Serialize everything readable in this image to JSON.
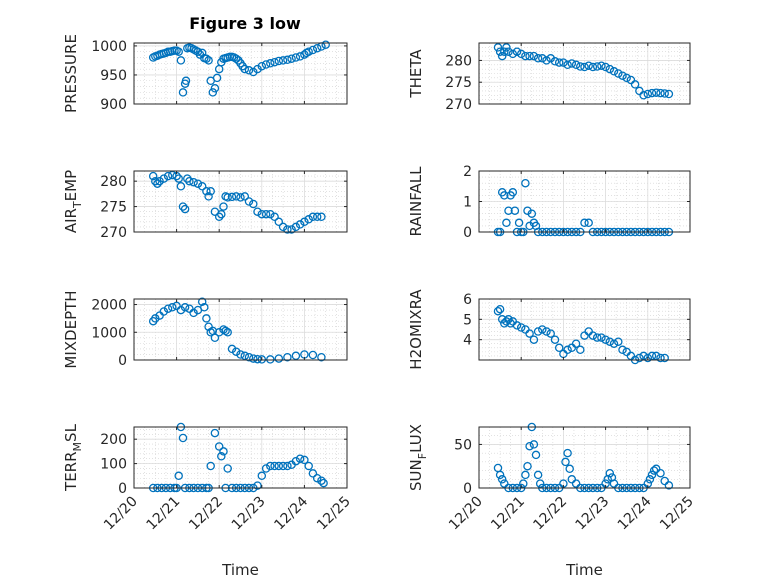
{
  "figure": {
    "title": "Figure 3 low",
    "xlabel": "Time",
    "marker_color": "#0072BD",
    "axes_color": "#262626",
    "grid_color": "#d0d0d0"
  },
  "x_ticks": [
    "12/20",
    "12/21",
    "12/22",
    "12/23",
    "12/24",
    "12/25"
  ],
  "chart_data": [
    {
      "type": "scatter",
      "name": "PRESSURE",
      "ylabel_main": "PRESSURE",
      "ylabel_sub": "",
      "ylabel_tail": "",
      "ylim": [
        900,
        1005
      ],
      "yticks": [
        900,
        950,
        1000
      ],
      "grid": true,
      "x": [
        20.45,
        20.5,
        20.55,
        20.6,
        20.65,
        20.7,
        20.75,
        20.8,
        20.85,
        20.9,
        20.95,
        21.0,
        21.05,
        21.1,
        21.15,
        21.2,
        21.22,
        21.25,
        21.3,
        21.35,
        21.4,
        21.45,
        21.5,
        21.55,
        21.6,
        21.65,
        21.7,
        21.75,
        21.8,
        21.85,
        21.9,
        21.95,
        22.0,
        22.05,
        22.1,
        22.15,
        22.2,
        22.25,
        22.3,
        22.35,
        22.4,
        22.45,
        22.5,
        22.55,
        22.6,
        22.7,
        22.8,
        22.9,
        23.0,
        23.1,
        23.2,
        23.3,
        23.4,
        23.5,
        23.6,
        23.7,
        23.8,
        23.9,
        24.0,
        24.05,
        24.1,
        24.2,
        24.3,
        24.4,
        24.5
      ],
      "y": [
        980,
        982,
        983,
        985,
        986,
        987,
        988,
        990,
        990,
        991,
        992,
        992,
        990,
        975,
        920,
        935,
        940,
        996,
        997,
        996,
        994,
        992,
        990,
        985,
        988,
        979,
        978,
        975,
        940,
        920,
        927,
        945,
        960,
        972,
        978,
        979,
        980,
        981,
        981,
        980,
        978,
        975,
        970,
        965,
        960,
        958,
        955,
        960,
        965,
        968,
        970,
        972,
        974,
        975,
        976,
        978,
        980,
        982,
        985,
        988,
        990,
        993,
        996,
        999,
        1002
      ]
    },
    {
      "type": "scatter",
      "name": "THETA",
      "ylabel_main": "THETA",
      "ylabel_sub": "",
      "ylabel_tail": "",
      "ylim": [
        270,
        284
      ],
      "yticks": [
        270,
        275,
        280
      ],
      "grid": true,
      "x": [
        20.45,
        20.5,
        20.55,
        20.6,
        20.65,
        20.7,
        20.8,
        20.9,
        21.0,
        21.1,
        21.2,
        21.3,
        21.4,
        21.5,
        21.6,
        21.7,
        21.8,
        21.9,
        22.0,
        22.1,
        22.2,
        22.3,
        22.4,
        22.5,
        22.6,
        22.7,
        22.8,
        22.9,
        23.0,
        23.1,
        23.2,
        23.3,
        23.4,
        23.5,
        23.6,
        23.7,
        23.8,
        23.9,
        24.0,
        24.1,
        24.2,
        24.3,
        24.4,
        24.5
      ],
      "y": [
        283,
        282,
        281,
        282,
        283,
        282,
        281.5,
        282,
        281.5,
        281,
        281,
        281,
        280.5,
        280.5,
        280,
        280.5,
        279.8,
        279.5,
        279.5,
        279,
        279.3,
        279,
        278.6,
        278.5,
        278.8,
        278.5,
        278.6,
        278.8,
        278.5,
        278,
        277.5,
        277,
        276.5,
        276,
        275.5,
        274.5,
        273,
        272,
        272.3,
        272.5,
        272.6,
        272.5,
        272.4,
        272.3
      ]
    },
    {
      "type": "scatter",
      "name": "AIR_TEMP",
      "ylabel_main": "AIR",
      "ylabel_sub": "T",
      "ylabel_tail": "EMP",
      "ylim": [
        270,
        282
      ],
      "yticks": [
        270,
        275,
        280
      ],
      "grid": true,
      "x": [
        20.45,
        20.5,
        20.55,
        20.6,
        20.7,
        20.8,
        20.9,
        21.0,
        21.05,
        21.1,
        21.15,
        21.2,
        21.25,
        21.3,
        21.4,
        21.5,
        21.6,
        21.7,
        21.75,
        21.8,
        21.9,
        22.0,
        22.05,
        22.1,
        22.15,
        22.2,
        22.3,
        22.4,
        22.5,
        22.6,
        22.7,
        22.8,
        22.9,
        23.0,
        23.1,
        23.2,
        23.3,
        23.4,
        23.5,
        23.6,
        23.7,
        23.8,
        23.9,
        24.0,
        24.1,
        24.2,
        24.3,
        24.4
      ],
      "y": [
        281,
        280,
        279.5,
        280,
        280.5,
        281,
        281.2,
        281,
        280.5,
        279,
        275,
        274.5,
        280.5,
        280,
        279.8,
        279.5,
        279,
        278,
        277,
        278,
        274,
        273,
        273.5,
        275,
        277,
        276.8,
        276.9,
        277,
        276.8,
        277,
        276,
        275.5,
        274,
        273.5,
        273.5,
        273.5,
        273,
        272,
        271,
        270.5,
        270.5,
        271,
        271.5,
        272,
        272.5,
        273,
        273,
        273
      ]
    },
    {
      "type": "scatter",
      "name": "RAINFALL",
      "ylabel_main": "RAINFALL",
      "ylabel_sub": "",
      "ylabel_tail": "",
      "ylim": [
        0,
        2
      ],
      "yticks": [
        0,
        1,
        2
      ],
      "grid": true,
      "x": [
        20.45,
        20.5,
        20.55,
        20.6,
        20.65,
        20.7,
        20.75,
        20.8,
        20.85,
        20.9,
        20.95,
        21.0,
        21.05,
        21.1,
        21.15,
        21.2,
        21.25,
        21.3,
        21.35,
        21.4,
        21.5,
        21.6,
        21.7,
        21.8,
        21.9,
        22.0,
        22.1,
        22.2,
        22.3,
        22.4,
        22.5,
        22.6,
        22.7,
        22.8,
        22.9,
        23.0,
        23.1,
        23.2,
        23.3,
        23.4,
        23.5,
        23.6,
        23.7,
        23.8,
        23.9,
        24.0,
        24.1,
        24.2,
        24.3,
        24.4,
        24.5
      ],
      "y": [
        0,
        0,
        1.3,
        1.2,
        0.3,
        0.7,
        1.2,
        1.3,
        0.7,
        0,
        0.3,
        0,
        0,
        1.6,
        0.7,
        0.2,
        0.6,
        0.3,
        0.2,
        0,
        0,
        0,
        0,
        0,
        0,
        0,
        0,
        0,
        0,
        0,
        0.3,
        0.3,
        0,
        0,
        0,
        0,
        0,
        0,
        0,
        0,
        0,
        0,
        0,
        0,
        0,
        0,
        0,
        0,
        0,
        0,
        0
      ]
    },
    {
      "type": "scatter",
      "name": "MIXDEPTH",
      "ylabel_main": "MIXDEPTH",
      "ylabel_sub": "",
      "ylabel_tail": "",
      "ylim": [
        0,
        2200
      ],
      "yticks": [
        0,
        1000,
        2000
      ],
      "grid": true,
      "x": [
        20.45,
        20.5,
        20.6,
        20.7,
        20.8,
        20.9,
        21.0,
        21.1,
        21.2,
        21.3,
        21.4,
        21.5,
        21.6,
        21.65,
        21.7,
        21.75,
        21.8,
        21.85,
        21.9,
        22.0,
        22.1,
        22.15,
        22.2,
        22.3,
        22.4,
        22.5,
        22.6,
        22.7,
        22.8,
        22.9,
        23.0,
        23.2,
        23.4,
        23.6,
        23.8,
        24.0,
        24.2,
        24.4
      ],
      "y": [
        1400,
        1500,
        1600,
        1750,
        1850,
        1900,
        1950,
        1800,
        1900,
        1850,
        1700,
        1800,
        2100,
        1900,
        1500,
        1200,
        1000,
        1050,
        800,
        1000,
        1100,
        1050,
        1000,
        400,
        300,
        200,
        150,
        100,
        50,
        30,
        20,
        20,
        50,
        100,
        150,
        200,
        180,
        100
      ]
    },
    {
      "type": "scatter",
      "name": "H2OMIXRA",
      "ylabel_main": "H2OMIXRA",
      "ylabel_sub": "",
      "ylabel_tail": "",
      "ylim": [
        3,
        6
      ],
      "yticks": [
        4,
        5,
        6
      ],
      "grid": true,
      "x": [
        20.45,
        20.5,
        20.55,
        20.6,
        20.65,
        20.7,
        20.75,
        20.8,
        20.9,
        21.0,
        21.1,
        21.2,
        21.3,
        21.4,
        21.5,
        21.6,
        21.7,
        21.8,
        21.9,
        22.0,
        22.1,
        22.2,
        22.3,
        22.4,
        22.5,
        22.6,
        22.7,
        22.8,
        22.9,
        23.0,
        23.1,
        23.2,
        23.3,
        23.4,
        23.5,
        23.6,
        23.7,
        23.8,
        23.9,
        24.0,
        24.1,
        24.2,
        24.3,
        24.4
      ],
      "y": [
        5.4,
        5.5,
        5.0,
        4.8,
        4.9,
        5.0,
        4.8,
        4.9,
        4.7,
        4.6,
        4.5,
        4.3,
        4.0,
        4.4,
        4.5,
        4.4,
        4.3,
        4.0,
        3.6,
        3.3,
        3.5,
        3.6,
        3.8,
        3.5,
        4.2,
        4.4,
        4.2,
        4.1,
        4.1,
        4.0,
        3.9,
        3.8,
        3.9,
        3.5,
        3.4,
        3.2,
        3.0,
        3.1,
        3.2,
        3.1,
        3.2,
        3.2,
        3.1,
        3.1
      ]
    },
    {
      "type": "scatter",
      "name": "TERR_MSL",
      "ylabel_main": "TERR",
      "ylabel_sub": "M",
      "ylabel_tail": "SL",
      "ylim": [
        0,
        250
      ],
      "yticks": [
        0,
        100,
        200
      ],
      "grid": true,
      "x": [
        20.45,
        20.55,
        20.65,
        20.75,
        20.85,
        20.95,
        21.0,
        21.05,
        21.1,
        21.15,
        21.2,
        21.3,
        21.4,
        21.5,
        21.6,
        21.7,
        21.75,
        21.8,
        21.9,
        22.0,
        22.05,
        22.1,
        22.15,
        22.2,
        22.3,
        22.4,
        22.5,
        22.6,
        22.7,
        22.8,
        22.9,
        23.0,
        23.1,
        23.2,
        23.3,
        23.4,
        23.5,
        23.6,
        23.7,
        23.8,
        23.9,
        24.0,
        24.1,
        24.2,
        24.3,
        24.4,
        24.45
      ],
      "y": [
        0,
        0,
        0,
        0,
        0,
        0,
        0,
        50,
        250,
        205,
        0,
        0,
        0,
        0,
        0,
        0,
        0,
        90,
        225,
        170,
        130,
        150,
        0,
        80,
        0,
        0,
        0,
        0,
        0,
        0,
        10,
        50,
        80,
        90,
        90,
        90,
        90,
        90,
        95,
        110,
        120,
        115,
        90,
        60,
        40,
        30,
        20
      ]
    },
    {
      "type": "scatter",
      "name": "SUN_FLUX",
      "ylabel_main": "SUN",
      "ylabel_sub": "F",
      "ylabel_tail": "LUX",
      "ylim": [
        0,
        70
      ],
      "yticks": [
        0,
        50
      ],
      "grid": true,
      "x": [
        20.45,
        20.5,
        20.55,
        20.6,
        20.7,
        20.8,
        20.9,
        21.0,
        21.05,
        21.1,
        21.15,
        21.2,
        21.25,
        21.3,
        21.35,
        21.4,
        21.45,
        21.5,
        21.6,
        21.7,
        21.8,
        21.9,
        22.0,
        22.05,
        22.1,
        22.15,
        22.2,
        22.3,
        22.4,
        22.5,
        22.6,
        22.7,
        22.8,
        22.9,
        23.0,
        23.05,
        23.1,
        23.15,
        23.2,
        23.3,
        23.4,
        23.5,
        23.6,
        23.7,
        23.8,
        23.9,
        24.0,
        24.05,
        24.1,
        24.15,
        24.2,
        24.3,
        24.4,
        24.5
      ],
      "y": [
        23,
        15,
        10,
        5,
        0,
        0,
        0,
        0,
        5,
        15,
        25,
        48,
        70,
        50,
        38,
        15,
        5,
        0,
        0,
        0,
        0,
        0,
        5,
        30,
        40,
        22,
        10,
        5,
        0,
        0,
        0,
        0,
        0,
        0,
        5,
        10,
        17,
        12,
        5,
        0,
        0,
        0,
        0,
        0,
        0,
        0,
        5,
        10,
        15,
        20,
        22,
        17,
        8,
        3
      ]
    }
  ]
}
